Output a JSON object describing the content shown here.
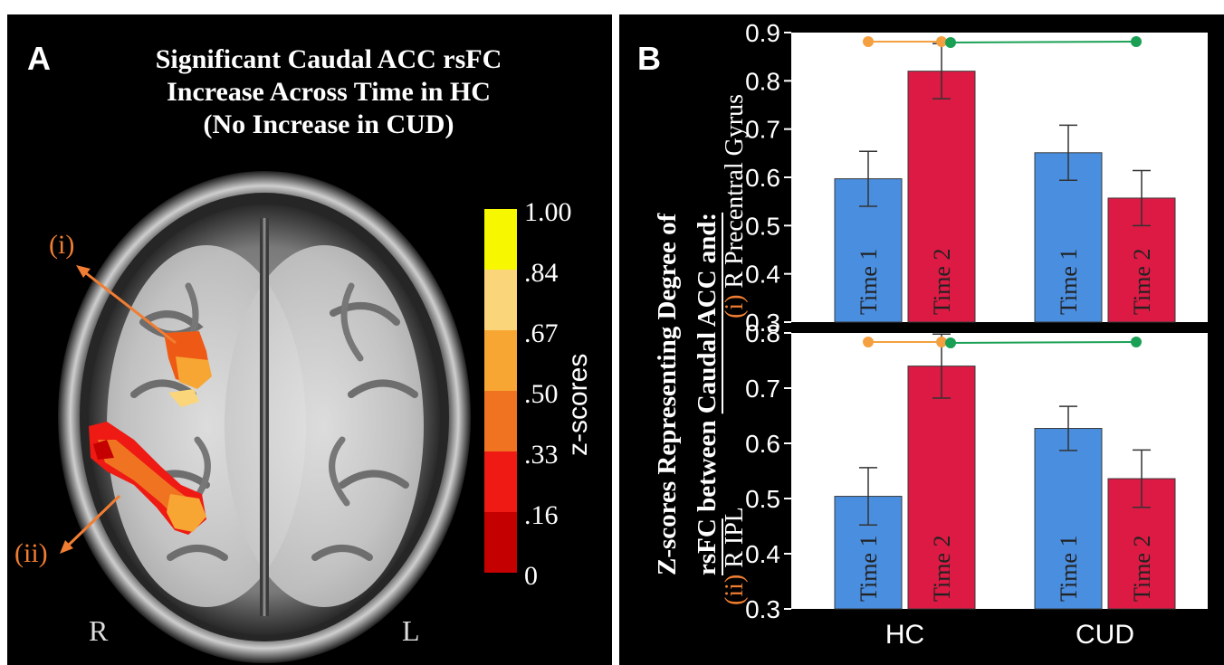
{
  "panel_a": {
    "letter": "A",
    "title_lines": [
      "Significant  Caudal ACC rsFC",
      "Increase Across Time in HC",
      "(No Increase in CUD)"
    ],
    "annotations": {
      "i": "(i)",
      "ii": "(ii)",
      "right": "R",
      "left": "L"
    },
    "colorbar": {
      "label": "z-scores",
      "ticks": [
        "1.00",
        ".84",
        ".67",
        ".50",
        ".33",
        ".16",
        "0"
      ],
      "colors": [
        "#f7f700",
        "#fbd57a",
        "#f7a634",
        "#f07322",
        "#ee1a13",
        "#c40000"
      ]
    },
    "accent_color": "#f07d32"
  },
  "panel_b": {
    "letter": "B",
    "ylabel_lines": [
      "Z-scores Representing Degree of",
      "rsFC between Caudal ACC and:"
    ],
    "ylabel_underlined": "Caudal ACC and:",
    "colors": {
      "time1": "#4a8ee0",
      "time2": "#dc1a44",
      "sig_hc": "#f4a040",
      "sig_between": "#1aa055"
    }
  },
  "chart_data": [
    {
      "type": "bar",
      "panel": "i",
      "region_label_prefix": "(i)",
      "region_label": "R Precentral Gyrus",
      "categories": [
        "HC",
        "CUD"
      ],
      "series": [
        {
          "name": "Time 1",
          "values": [
            0.597,
            0.651
          ],
          "errors": [
            0.057,
            0.057
          ]
        },
        {
          "name": "Time 2",
          "values": [
            0.82,
            0.557
          ],
          "errors": [
            0.057,
            0.057
          ]
        }
      ],
      "ylim": [
        0.3,
        0.9
      ],
      "yticks": [
        "0.3",
        "0.4",
        "0.5",
        "0.6",
        "0.7",
        "0.8",
        "0.9"
      ],
      "significance": [
        {
          "from": "HC Time 1",
          "to": "HC Time 2",
          "color": "orange"
        },
        {
          "from": "HC Time 2",
          "to": "CUD Time 2",
          "color": "green"
        }
      ]
    },
    {
      "type": "bar",
      "panel": "ii",
      "region_label_prefix": "(ii)",
      "region_label": "R IPL",
      "categories": [
        "HC",
        "CUD"
      ],
      "series": [
        {
          "name": "Time 1",
          "values": [
            0.504,
            0.627
          ],
          "errors": [
            0.052,
            0.04
          ]
        },
        {
          "name": "Time 2",
          "values": [
            0.74,
            0.536
          ],
          "errors": [
            0.058,
            0.052
          ]
        }
      ],
      "ylim": [
        0.3,
        0.8
      ],
      "yticks": [
        "0.3",
        "0.4",
        "0.5",
        "0.6",
        "0.7",
        "0.8"
      ],
      "xlabels": [
        "HC",
        "CUD"
      ],
      "significance": [
        {
          "from": "HC Time 1",
          "to": "HC Time 2",
          "color": "orange"
        },
        {
          "from": "HC Time 2",
          "to": "CUD Time 2",
          "color": "green"
        }
      ]
    }
  ]
}
